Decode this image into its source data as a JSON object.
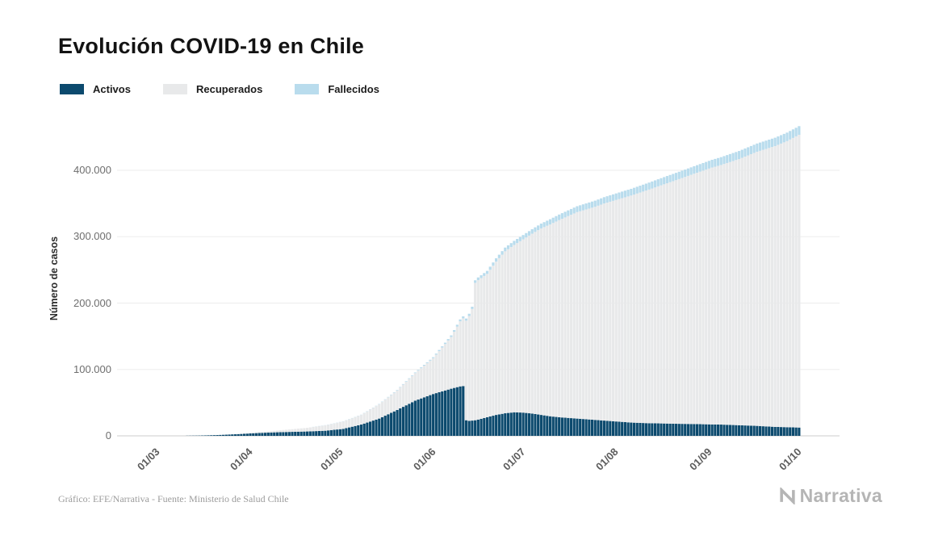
{
  "page": {
    "title": "Evolución COVID-19 en Chile"
  },
  "axis": {
    "y_label": "Número de casos"
  },
  "footer": {
    "source": "Gráfico: EFE/Narrativa - Fuente: Ministerio de Salud Chile",
    "brand": "Narrativa"
  },
  "chart_data": {
    "type": "bar",
    "stacked": true,
    "title": "Evolución COVID-19 en Chile",
    "xlabel": "",
    "ylabel": "Número de casos",
    "ylim": [
      0,
      475000
    ],
    "grid": true,
    "legend_position": "top-left",
    "x_unit": "days since 01/03 (1 March 2020), daily bars",
    "yticks": [
      {
        "value": 0,
        "label": "0"
      },
      {
        "value": 100000,
        "label": "100.000"
      },
      {
        "value": 200000,
        "label": "200.000"
      },
      {
        "value": 300000,
        "label": "300.000"
      },
      {
        "value": 400000,
        "label": "400.000"
      }
    ],
    "xticks": [
      {
        "day": 0,
        "label": "01/03"
      },
      {
        "day": 31,
        "label": "01/04"
      },
      {
        "day": 61,
        "label": "01/05"
      },
      {
        "day": 92,
        "label": "01/06"
      },
      {
        "day": 122,
        "label": "01/07"
      },
      {
        "day": 153,
        "label": "01/08"
      },
      {
        "day": 184,
        "label": "01/09"
      },
      {
        "day": 214,
        "label": "01/10"
      }
    ],
    "last_day": 218,
    "sample_days": [
      0,
      6,
      12,
      18,
      24,
      30,
      36,
      42,
      48,
      54,
      60,
      66,
      72,
      78,
      84,
      90,
      96,
      102,
      105,
      106,
      107,
      108,
      109,
      110,
      111,
      114,
      117,
      120,
      123,
      126,
      129,
      132,
      135,
      138,
      141,
      144,
      147,
      150,
      153,
      156,
      159,
      162,
      165,
      168,
      171,
      174,
      177,
      180,
      183,
      186,
      189,
      192,
      195,
      198,
      201,
      204,
      207,
      210,
      214,
      218
    ],
    "series": [
      {
        "name": "Activos",
        "color": "#0c4a6e",
        "values": [
          1,
          12,
          80,
          400,
          1150,
          2350,
          3900,
          5100,
          5900,
          6600,
          7700,
          10500,
          17000,
          26000,
          39000,
          53000,
          63000,
          71000,
          74500,
          75000,
          23500,
          22500,
          23000,
          23500,
          24500,
          28000,
          31500,
          34000,
          35500,
          35000,
          33500,
          31500,
          29500,
          28000,
          27000,
          26000,
          25000,
          24000,
          23000,
          22000,
          21000,
          20000,
          19500,
          19000,
          18800,
          18500,
          18200,
          18000,
          17800,
          17500,
          17200,
          17000,
          16500,
          16000,
          15500,
          15000,
          14200,
          13500,
          13000,
          12500
        ]
      },
      {
        "name": "Recuperados",
        "color": "#e8e9ea",
        "values": [
          0,
          0,
          0,
          10,
          50,
          180,
          950,
          2050,
          3700,
          5500,
          8100,
          11100,
          14500,
          21500,
          29500,
          41500,
          54000,
          78000,
          98000,
          102000,
          150000,
          158000,
          168000,
          207000,
          210000,
          216000,
          231000,
          244000,
          252000,
          261000,
          271000,
          281000,
          289000,
          297000,
          304000,
          311000,
          316000,
          321000,
          327000,
          332000,
          337000,
          342000,
          347000,
          352000,
          357000,
          362000,
          367000,
          372000,
          377000,
          382000,
          387000,
          391000,
          396000,
          401000,
          407000,
          413000,
          418000,
          423000,
          431000,
          441000
        ]
      },
      {
        "name": "Fallecidos",
        "color": "#b9dced",
        "values": [
          0,
          0,
          0,
          1,
          5,
          12,
          30,
          55,
          92,
          160,
          230,
          280,
          350,
          500,
          720,
          1000,
          1450,
          2300,
          2900,
          3000,
          3200,
          3400,
          3500,
          3800,
          4100,
          4500,
          5000,
          5600,
          6200,
          6500,
          6800,
          7200,
          7800,
          8350,
          8650,
          8900,
          9100,
          9300,
          9500,
          9750,
          9950,
          10100,
          10300,
          10500,
          10700,
          10900,
          11000,
          11100,
          11300,
          11500,
          11650,
          11800,
          12000,
          12100,
          12200,
          12350,
          12500,
          12600,
          12800,
          13000
        ]
      }
    ]
  }
}
